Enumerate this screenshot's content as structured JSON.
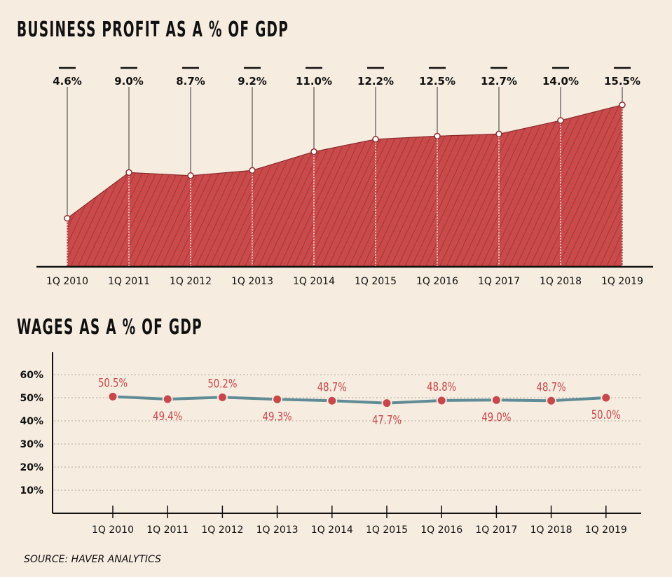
{
  "chart_data": [
    {
      "type": "area",
      "title": "BUSINESS PROFIT AS A % OF GDP",
      "categories": [
        "1Q 2010",
        "1Q 2011",
        "1Q 2012",
        "1Q 2013",
        "1Q 2014",
        "1Q 2015",
        "1Q 2016",
        "1Q 2017",
        "1Q 2018",
        "1Q 2019"
      ],
      "values": [
        4.6,
        9.0,
        8.7,
        9.2,
        11.0,
        12.2,
        12.5,
        12.7,
        14.0,
        15.5
      ],
      "data_labels": [
        "4.6%",
        "9.0%",
        "8.7%",
        "9.2%",
        "11.0%",
        "12.2%",
        "12.5%",
        "12.7%",
        "14.0%",
        "15.5%"
      ],
      "ylim": [
        0,
        16
      ],
      "grid": false,
      "fill_color": "#c94a4a",
      "hatch_color": "#9e2f30"
    },
    {
      "type": "line",
      "title": "WAGES AS A % OF GDP",
      "categories": [
        "1Q 2010",
        "1Q 2011",
        "1Q 2012",
        "1Q 2013",
        "1Q 2014",
        "1Q 2015",
        "1Q 2016",
        "1Q 2017",
        "1Q 2018",
        "1Q 2019"
      ],
      "values": [
        50.5,
        49.4,
        50.2,
        49.3,
        48.7,
        47.7,
        48.8,
        49.0,
        48.7,
        50.0
      ],
      "data_labels": [
        "50.5%",
        "49.4%",
        "50.2%",
        "49.3%",
        "48.7%",
        "47.7%",
        "48.8%",
        "49.0%",
        "48.7%",
        "50.0%"
      ],
      "label_positions": [
        "above",
        "below",
        "above",
        "below",
        "above",
        "below",
        "above",
        "below",
        "above",
        "below"
      ],
      "yticks": [
        10,
        20,
        30,
        40,
        50,
        60
      ],
      "ytick_labels": [
        "10%",
        "20%",
        "30%",
        "40%",
        "50%",
        "60%"
      ],
      "ylim": [
        0,
        65
      ],
      "grid": true,
      "line_color": "#5f8c96",
      "marker_color": "#c8474b"
    }
  ],
  "source": "SOURCE: HAVER ANALYTICS"
}
